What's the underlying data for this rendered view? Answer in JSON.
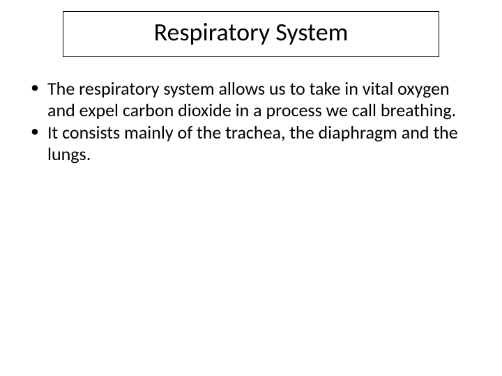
{
  "slide": {
    "title": "Respiratory System",
    "bullets": [
      "The respiratory system allows us to take in vital oxygen and expel carbon dioxide in a process we call breathing.",
      "It consists mainly of the trachea, the diaphragm and the lungs."
    ]
  },
  "style": {
    "background_color": "#ffffff",
    "text_color": "#000000",
    "title_border_color": "#000000",
    "title_fontsize": 36,
    "body_fontsize": 26,
    "font_family": "Calibri"
  }
}
